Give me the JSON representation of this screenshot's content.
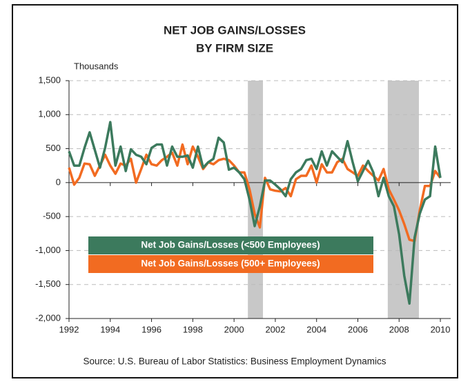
{
  "chart_data": {
    "type": "line",
    "title": [
      "NET JOB GAINS/LOSSES",
      "BY FIRM SIZE"
    ],
    "y_axis_label": "Thousands",
    "source": "Source: U.S. Bureau of Labor Statistics: Business Employment Dynamics",
    "x": [
      1992,
      1992.25,
      1992.5,
      1992.75,
      1993,
      1993.25,
      1993.5,
      1993.75,
      1994,
      1994.25,
      1994.5,
      1994.75,
      1995,
      1995.25,
      1995.5,
      1995.75,
      1996,
      1996.25,
      1996.5,
      1996.75,
      1997,
      1997.25,
      1997.5,
      1997.75,
      1998,
      1998.25,
      1998.5,
      1998.75,
      1999,
      1999.25,
      1999.5,
      1999.75,
      2000,
      2000.25,
      2000.5,
      2000.75,
      2001,
      2001.25,
      2001.5,
      2001.75,
      2002,
      2002.25,
      2002.5,
      2002.75,
      2003,
      2003.25,
      2003.5,
      2003.75,
      2004,
      2004.25,
      2004.5,
      2004.75,
      2005,
      2005.25,
      2005.5,
      2005.75,
      2006,
      2006.25,
      2006.5,
      2006.75,
      2007,
      2007.25,
      2007.5,
      2007.75,
      2008,
      2008.25,
      2008.5,
      2008.75,
      2009,
      2009.25,
      2009.5,
      2009.75,
      2010
    ],
    "series": [
      {
        "name": "Net Job Gains/Losses (<500 Employees)",
        "color": "#3c7a5d",
        "values": [
          460,
          250,
          250,
          510,
          740,
          480,
          220,
          510,
          890,
          250,
          530,
          170,
          490,
          410,
          380,
          270,
          510,
          560,
          560,
          250,
          530,
          380,
          380,
          400,
          220,
          530,
          220,
          300,
          350,
          660,
          590,
          190,
          220,
          150,
          50,
          -250,
          -640,
          -350,
          30,
          30,
          -30,
          -100,
          -200,
          50,
          150,
          200,
          330,
          350,
          200,
          460,
          250,
          460,
          380,
          300,
          610,
          300,
          20,
          170,
          320,
          150,
          -200,
          70,
          -200,
          -350,
          -760,
          -1370,
          -1780,
          -810,
          -460,
          -250,
          -200,
          530,
          70
        ]
      },
      {
        "name": "Net Job Gains/Losses (500+ Employees)",
        "color": "#f26b21",
        "values": [
          220,
          -30,
          70,
          280,
          270,
          100,
          250,
          410,
          250,
          130,
          280,
          250,
          350,
          0,
          200,
          410,
          270,
          250,
          330,
          380,
          440,
          250,
          560,
          270,
          530,
          380,
          200,
          300,
          270,
          330,
          350,
          330,
          250,
          150,
          150,
          -100,
          -460,
          -660,
          70,
          -100,
          -120,
          -130,
          -80,
          -200,
          50,
          100,
          100,
          250,
          0,
          270,
          150,
          150,
          300,
          350,
          200,
          150,
          100,
          250,
          170,
          100,
          30,
          200,
          -100,
          -250,
          -410,
          -610,
          -840,
          -860,
          -410,
          -50,
          -50,
          170,
          70
        ]
      }
    ],
    "shaded_ranges": [
      [
        2000.67,
        2001.4
      ],
      [
        2007.45,
        2008.96
      ]
    ],
    "shade_color": "#c8c8c8",
    "xlim": [
      1992,
      2010.5
    ],
    "xticks": [
      1992,
      1994,
      1996,
      1998,
      2000,
      2002,
      2004,
      2006,
      2008,
      2010
    ],
    "ylim": [
      -2000,
      1500
    ],
    "yticks": [
      {
        "value": 1500,
        "label": "1,500"
      },
      {
        "value": 1000,
        "label": "1,000"
      },
      500,
      0,
      -500,
      {
        "value": -1000,
        "label": "-1,000"
      },
      {
        "value": -1500,
        "label": "-1,500"
      },
      {
        "value": -2000,
        "label": "-2,000"
      }
    ],
    "grid": true
  }
}
